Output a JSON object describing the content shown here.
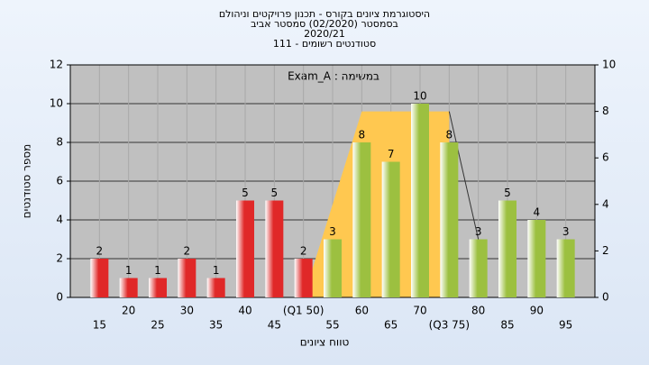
{
  "chart_data": {
    "type": "bar",
    "title_lines": [
      "היסטוגרמת ציונים בקורס - תכנון פרויקטים וניהולם",
      "בסמסטר  (02/2020)  סמסטר אביב",
      "2020/21",
      "סטודנטים רשומים - 111"
    ],
    "annotation": "Exam_A : במשימה",
    "x_label": "טווח ציונים",
    "y_label": "מספר סטודנטים",
    "x": [
      15,
      20,
      25,
      30,
      35,
      40,
      45,
      50,
      55,
      60,
      65,
      70,
      75,
      80,
      85,
      90,
      95
    ],
    "xlim": [
      10,
      100
    ],
    "xticks": [
      15,
      20,
      25,
      30,
      35,
      40,
      45,
      {
        "value": 50,
        "label": "(Q1 50)"
      },
      55,
      60,
      65,
      70,
      {
        "value": 75,
        "label": "(Q3 75)"
      },
      80,
      85,
      90,
      95
    ],
    "ylim": [
      0,
      12
    ],
    "yticks": [
      0,
      2,
      4,
      6,
      8,
      10,
      12
    ],
    "y2lim": [
      0,
      10
    ],
    "y2ticks": [
      0,
      2,
      4,
      6,
      8,
      10
    ],
    "grid": true,
    "series": [
      {
        "color": "#e02828",
        "values": [
          2,
          1,
          1,
          2,
          1,
          5,
          5,
          2,
          null,
          null,
          null,
          null,
          null,
          null,
          null,
          null,
          null
        ]
      },
      {
        "color": "#9cc040",
        "values": [
          null,
          null,
          null,
          null,
          null,
          null,
          null,
          null,
          3,
          8,
          7,
          10,
          8,
          3,
          5,
          4,
          3
        ]
      }
    ],
    "overlay_area": {
      "color": "#ffc850",
      "axis": "y2",
      "x": [
        50,
        60,
        75,
        75
      ],
      "values": [
        0,
        8,
        8,
        0
      ]
    },
    "overlay_line": {
      "color": "#333333",
      "axis": "y2",
      "x": [
        75,
        80
      ],
      "values": [
        8,
        2.5
      ]
    }
  }
}
